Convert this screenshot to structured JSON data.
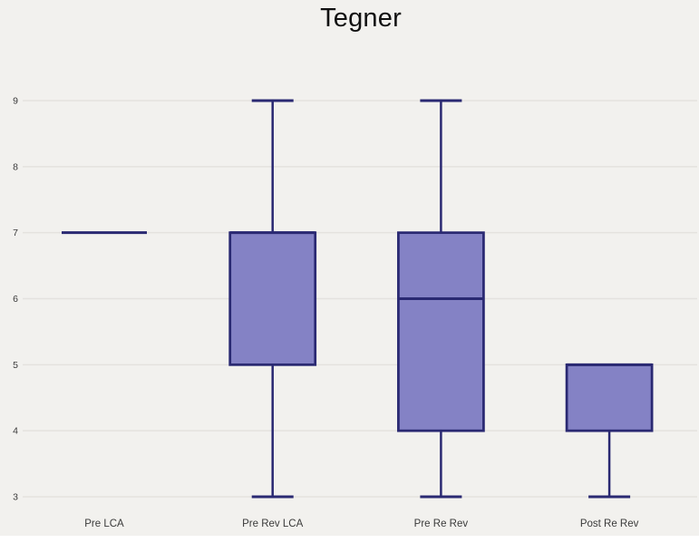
{
  "title": "Tegner",
  "chart_data": {
    "type": "boxplot",
    "title": "Tegner",
    "categories": [
      "Pre LCA",
      "Pre Rev LCA",
      "Pre Re Rev",
      "Post Re Rev"
    ],
    "series": [
      {
        "name": "Pre LCA",
        "min": 7,
        "q1": 7,
        "median": 7,
        "q3": 7,
        "max": 7
      },
      {
        "name": "Pre Rev LCA",
        "min": 3,
        "q1": 5,
        "median": 7,
        "q3": 7,
        "max": 9
      },
      {
        "name": "Pre Re Rev",
        "min": 3,
        "q1": 4,
        "median": 6,
        "q3": 7,
        "max": 9
      },
      {
        "name": "Post Re Rev",
        "min": 3,
        "q1": 4,
        "median": 5,
        "q3": 5,
        "max": 5
      }
    ],
    "ylim": [
      3,
      9
    ],
    "yticks": [
      3,
      4,
      5,
      6,
      7,
      8,
      9
    ],
    "grid": true,
    "legend": false,
    "xlabel": "",
    "ylabel": "",
    "colors": {
      "box_fill": "#8482c5",
      "box_stroke": "#2a2972",
      "background": "#f2f1ee",
      "gridline": "#e4e2de",
      "tick_text": "#3a3a3a",
      "title_text": "#111111"
    }
  }
}
